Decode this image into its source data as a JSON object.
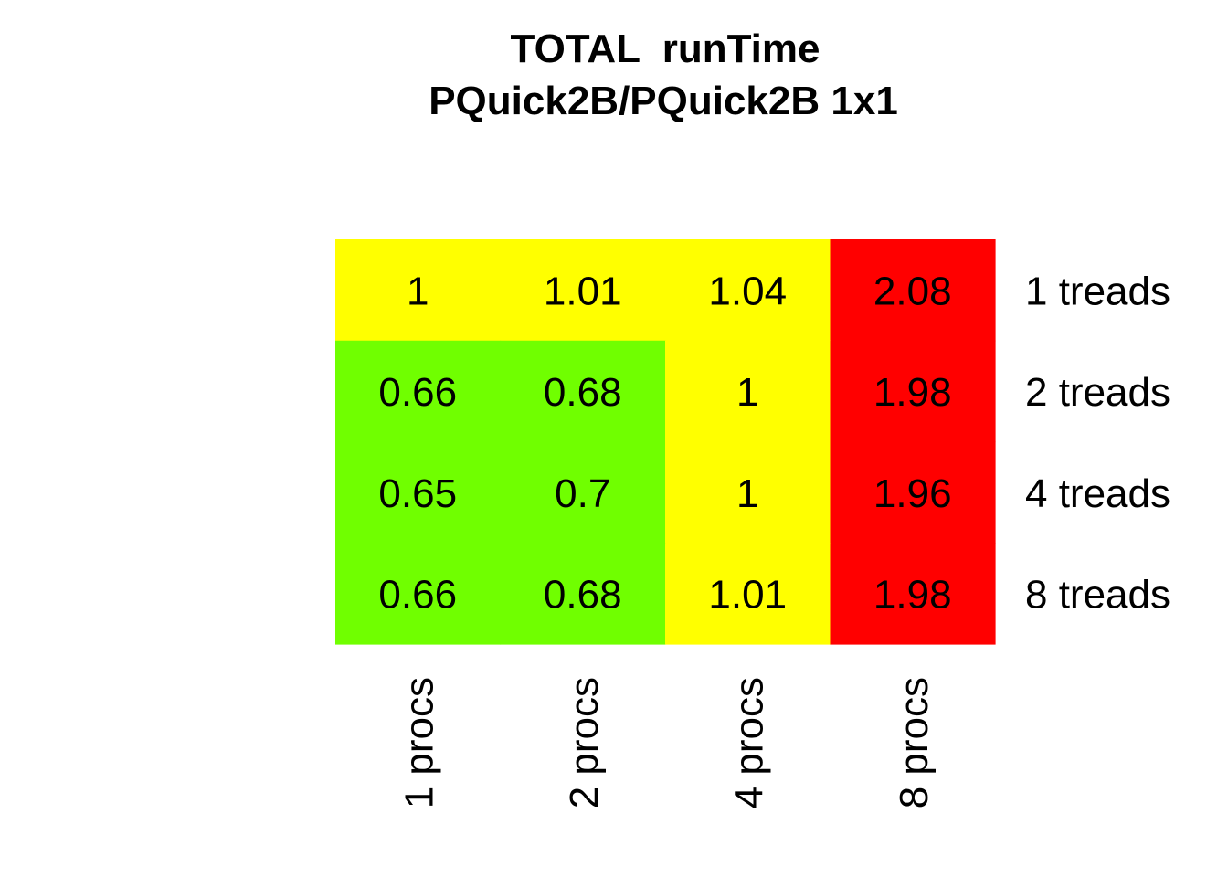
{
  "chart_data": {
    "type": "heatmap",
    "title": "TOTAL  runTime",
    "subtitle": "PQuick2B/PQuick2B 1x1",
    "columns": [
      "1 procs",
      "2 procs",
      "4 procs",
      "8 procs"
    ],
    "rows": [
      "1 treads",
      "2 treads",
      "4 treads",
      "8 treads"
    ],
    "values": [
      [
        1,
        1.01,
        1.04,
        2.08
      ],
      [
        0.66,
        0.68,
        1,
        1.98
      ],
      [
        0.65,
        0.7,
        1,
        1.96
      ],
      [
        0.66,
        0.68,
        1.01,
        1.98
      ]
    ],
    "labels": [
      [
        "1",
        "1.01",
        "1.04",
        "2.08"
      ],
      [
        "0.66",
        "0.68",
        "1",
        "1.98"
      ],
      [
        "0.65",
        "0.7",
        "1",
        "1.96"
      ],
      [
        "0.66",
        "0.68",
        "1.01",
        "1.98"
      ]
    ],
    "cell_colors": [
      [
        "yellow",
        "yellow",
        "yellow",
        "red"
      ],
      [
        "green",
        "green",
        "yellow",
        "red"
      ],
      [
        "green",
        "green",
        "yellow",
        "red"
      ],
      [
        "green",
        "green",
        "yellow",
        "red"
      ]
    ],
    "palette": {
      "green": "#70ff00",
      "yellow": "#ffff00",
      "red": "#ff0000"
    }
  }
}
